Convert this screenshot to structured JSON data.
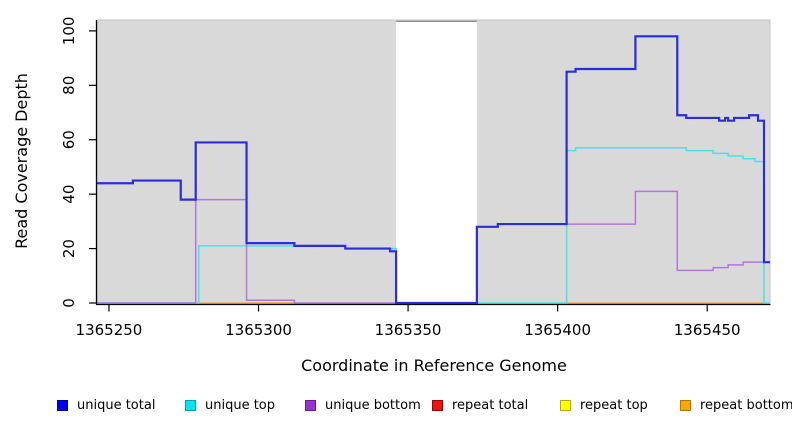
{
  "figure": {
    "xlabel": "Coordinate in Reference Genome",
    "ylabel": "Read Coverage Depth",
    "x_ticks": [
      {
        "value": 1365250,
        "label": "1365250"
      },
      {
        "value": 1365300,
        "label": "1365300"
      },
      {
        "value": 1365350,
        "label": "1365350"
      },
      {
        "value": 1365400,
        "label": "1365400"
      },
      {
        "value": 1365450,
        "label": "1365450"
      }
    ],
    "y_ticks": [
      {
        "value": 0,
        "label": "0"
      },
      {
        "value": 20,
        "label": "20"
      },
      {
        "value": 40,
        "label": "40"
      },
      {
        "value": 60,
        "label": "60"
      },
      {
        "value": 80,
        "label": "80"
      },
      {
        "value": 100,
        "label": "100"
      }
    ],
    "panel_bg": "#d9d9d9",
    "panel_border": "#c4c4c4",
    "axis_color": "#000000"
  },
  "chart_data": {
    "type": "line",
    "subtype": "step-coverage-plot",
    "title": "",
    "xlabel": "Coordinate in Reference Genome",
    "ylabel": "Read Coverage Depth",
    "x_range": [
      1365246,
      1365471
    ],
    "y_range": [
      0,
      104
    ],
    "grid": "off",
    "legend_position": "bottom",
    "gap_region": {
      "from": 1365346,
      "to": 1365373,
      "fill": "#ffffff",
      "border": "#909090",
      "note": "white band where coverage drops to 0"
    },
    "series": [
      {
        "name": "unique total",
        "color": "#2b2be0",
        "width": 2.2,
        "draw_order": 6,
        "steps": [
          [
            1365246,
            44
          ],
          [
            1365258,
            45
          ],
          [
            1365274,
            38
          ],
          [
            1365279,
            59
          ],
          [
            1365296,
            22
          ],
          [
            1365312,
            21
          ],
          [
            1365329,
            20
          ],
          [
            1365344,
            19
          ],
          [
            1365346,
            0
          ],
          [
            1365373,
            28
          ],
          [
            1365380,
            29
          ],
          [
            1365403,
            85
          ],
          [
            1365406,
            86
          ],
          [
            1365426,
            98
          ],
          [
            1365440,
            69
          ],
          [
            1365443,
            68
          ],
          [
            1365454,
            67
          ],
          [
            1365456,
            68
          ],
          [
            1365457,
            67
          ],
          [
            1365459,
            68
          ],
          [
            1365464,
            69
          ],
          [
            1365467,
            67
          ],
          [
            1365469,
            15
          ]
        ]
      },
      {
        "name": "unique top",
        "color": "#49e1e6",
        "width": 1.5,
        "draw_order": 4,
        "steps": [
          [
            1365246,
            0
          ],
          [
            1365280,
            21
          ],
          [
            1365329,
            20
          ],
          [
            1365346,
            0
          ],
          [
            1365403,
            56
          ],
          [
            1365406,
            57
          ],
          [
            1365443,
            56
          ],
          [
            1365452,
            55
          ],
          [
            1365457,
            54
          ],
          [
            1365462,
            53
          ],
          [
            1365466,
            52
          ],
          [
            1365469,
            0
          ]
        ]
      },
      {
        "name": "unique bottom",
        "color": "#b178d9",
        "width": 1.5,
        "draw_order": 5,
        "steps": [
          [
            1365246,
            0
          ],
          [
            1365279,
            38
          ],
          [
            1365296,
            1
          ],
          [
            1365312,
            0
          ],
          [
            1365373,
            28
          ],
          [
            1365380,
            29
          ],
          [
            1365426,
            41
          ],
          [
            1365440,
            12
          ],
          [
            1365452,
            13
          ],
          [
            1365457,
            14
          ],
          [
            1365462,
            15
          ]
        ]
      },
      {
        "name": "repeat total",
        "color": "#d64466",
        "width": 1.6,
        "draw_order": 1,
        "steps": [],
        "value_note": "0 across plot; visible as crimson baseline 1365312-1365346"
      },
      {
        "name": "repeat top",
        "color": "#ffff00",
        "width": 1.6,
        "draw_order": 2,
        "steps": [],
        "value_note": "0 across plot; blends with cyan at baseline into green segments"
      },
      {
        "name": "repeat bottom",
        "color": "#ff9414",
        "width": 1.6,
        "draw_order": 3,
        "steps": [],
        "value_note": "0 across plot; visible as orange baseline 1365280-1365312 and 1365403-1365469"
      }
    ],
    "baseline_visible_segments": [
      {
        "from": 1365246,
        "to": 1365280,
        "color": "#8fce9e",
        "source": "unique top + repeat top overlap at 0"
      },
      {
        "from": 1365280,
        "to": 1365312,
        "color": "#ff9414",
        "source": "repeat bottom at 0"
      },
      {
        "from": 1365312,
        "to": 1365346,
        "color": "#d64466",
        "source": "repeat total at 0"
      },
      {
        "from": 1365346,
        "to": 1365373,
        "color": "#2b2be0",
        "source": "unique total at 0 through gap"
      },
      {
        "from": 1365373,
        "to": 1365403,
        "color": "#8fce9e",
        "source": "unique top + repeat top overlap at 0"
      },
      {
        "from": 1365403,
        "to": 1365469,
        "color": "#ff9414",
        "source": "repeat bottom at 0"
      },
      {
        "from": 1365469,
        "to": 1365471,
        "color": "#8fce9e",
        "source": "unique top + repeat top overlap at 0"
      }
    ],
    "legend": [
      {
        "label": "unique total",
        "fill": "#0000ee",
        "border": "#00009a"
      },
      {
        "label": "unique top",
        "fill": "#00e5ee",
        "border": "#00a0b0"
      },
      {
        "label": "unique bottom",
        "fill": "#9932cc",
        "border": "#6a1b9a"
      },
      {
        "label": "repeat total",
        "fill": "#ee1111",
        "border": "#a00000"
      },
      {
        "label": "repeat top",
        "fill": "#ffff00",
        "border": "#b8a800"
      },
      {
        "label": "repeat bottom",
        "fill": "#ffa500",
        "border": "#b87400"
      }
    ]
  }
}
